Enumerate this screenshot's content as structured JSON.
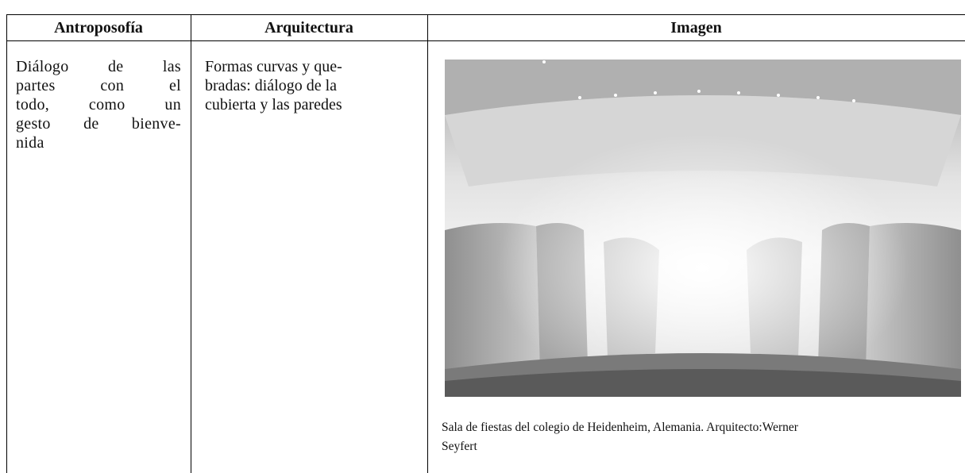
{
  "table": {
    "header": [
      "Antroposofía",
      "Arquitectura",
      "Imagen"
    ],
    "rows": [
      [
        [
          "Diálogo de las",
          "partes con el",
          "todo, como un",
          "gesto de bienve-",
          "nida"
        ],
        [
          "Formas curvas y que-",
          "bradas: diálogo de la",
          "cubierta y las paredes"
        ],
        [
          "Sala de fiestas del colegio de Heidenheim, Alemania. Arquitecto:Werner",
          "Seyfert"
        ]
      ]
    ]
  }
}
